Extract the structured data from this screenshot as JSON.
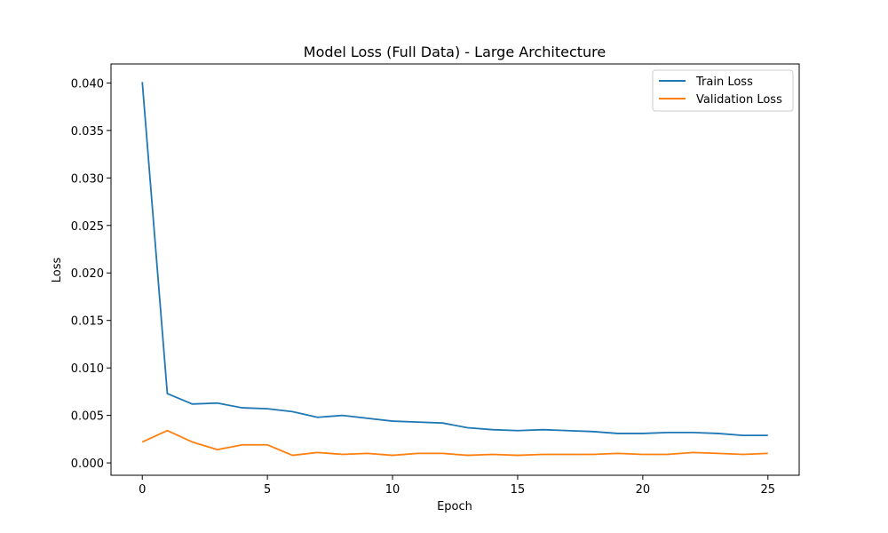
{
  "chart_data": {
    "type": "line",
    "title": "Model Loss (Full Data) - Large Architecture",
    "xlabel": "Epoch",
    "ylabel": "Loss",
    "xlim": [
      -1.25,
      26.25
    ],
    "ylim": [
      -0.0013,
      0.042
    ],
    "xticks": [
      0,
      5,
      10,
      15,
      20,
      25
    ],
    "yticks": [
      0.0,
      0.005,
      0.01,
      0.015,
      0.02,
      0.025,
      0.03,
      0.035,
      0.04
    ],
    "xtick_labels": [
      "0",
      "5",
      "10",
      "15",
      "20",
      "25"
    ],
    "ytick_labels": [
      "0.000",
      "0.005",
      "0.010",
      "0.015",
      "0.020",
      "0.025",
      "0.030",
      "0.035",
      "0.040"
    ],
    "grid": false,
    "legend_position": "top-right",
    "x": [
      0,
      1,
      2,
      3,
      4,
      5,
      6,
      7,
      8,
      9,
      10,
      11,
      12,
      13,
      14,
      15,
      16,
      17,
      18,
      19,
      20,
      21,
      22,
      23,
      24,
      25
    ],
    "series": [
      {
        "name": "Train Loss",
        "color": "#1f77b4",
        "values": [
          0.0401,
          0.0073,
          0.0062,
          0.0063,
          0.0058,
          0.0057,
          0.0054,
          0.0048,
          0.005,
          0.0047,
          0.0044,
          0.0043,
          0.0042,
          0.0037,
          0.0035,
          0.0034,
          0.0035,
          0.0034,
          0.0033,
          0.0031,
          0.0031,
          0.0032,
          0.0032,
          0.0031,
          0.0029,
          0.0029
        ]
      },
      {
        "name": "Validation Loss",
        "color": "#ff7f0e",
        "values": [
          0.0022,
          0.0034,
          0.0022,
          0.0014,
          0.0019,
          0.0019,
          0.0008,
          0.0011,
          0.0009,
          0.001,
          0.0008,
          0.001,
          0.001,
          0.0008,
          0.0009,
          0.0008,
          0.0009,
          0.0009,
          0.0009,
          0.001,
          0.0009,
          0.0009,
          0.0011,
          0.001,
          0.0009,
          0.001
        ]
      }
    ]
  }
}
